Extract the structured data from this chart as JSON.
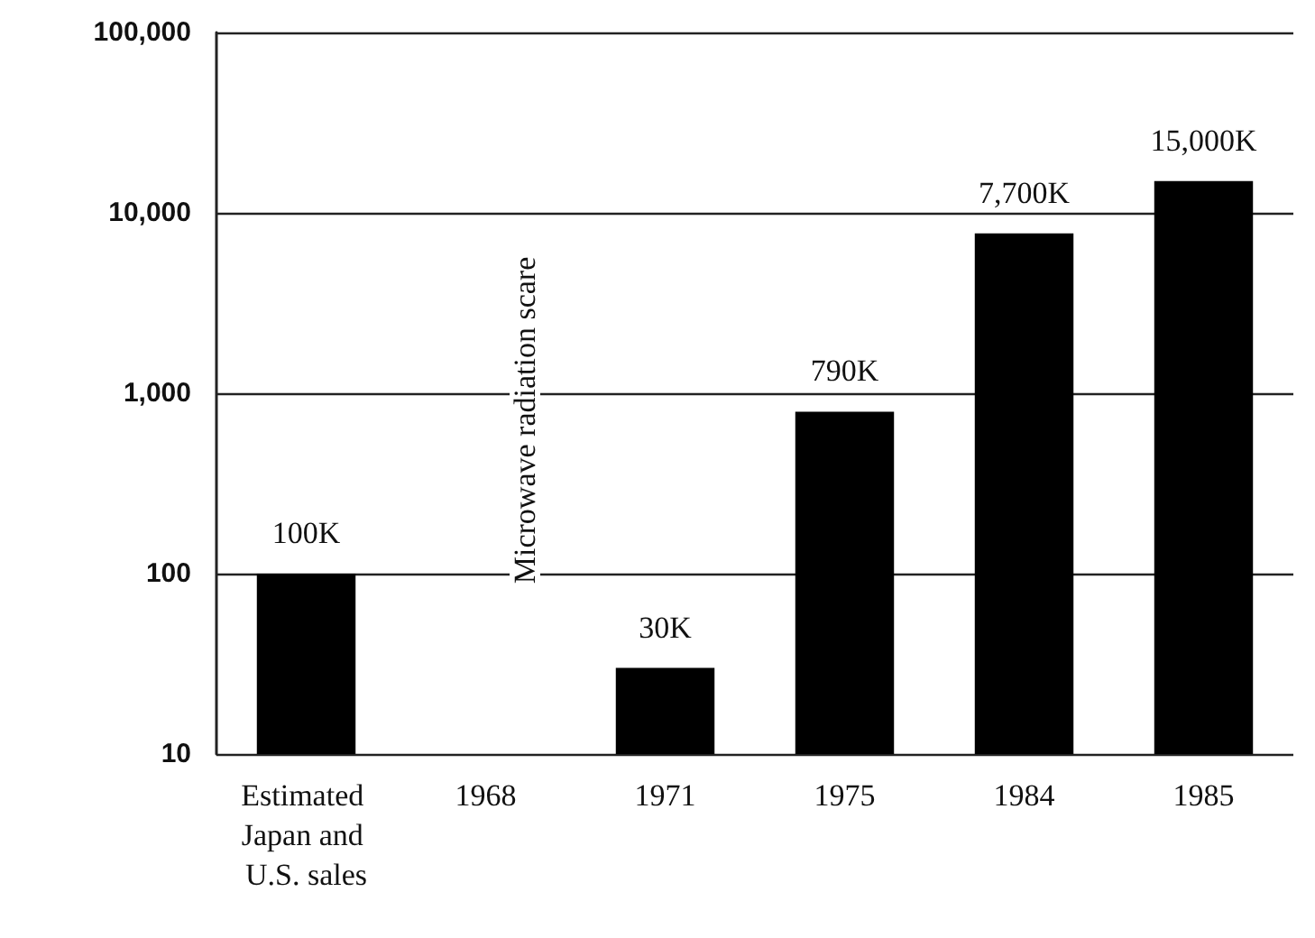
{
  "chart_data": {
    "type": "bar",
    "categories": [
      "Estimated Japan and U.S. sales",
      "1968",
      "1971",
      "1975",
      "1984",
      "1985"
    ],
    "values": [
      100,
      null,
      30,
      790,
      7700,
      15000
    ],
    "value_labels": [
      "100K",
      null,
      "30K",
      "790K",
      "7,700K",
      "15,000K"
    ],
    "color": "#000000",
    "log": "y",
    "ylim": [
      10,
      100000
    ],
    "yticks": [
      10,
      100,
      {
        "value": 1000,
        "label": "1,000"
      },
      {
        "value": 10000,
        "label": "10,000"
      },
      {
        "value": 100000,
        "label": "100,000"
      }
    ],
    "grid": "y",
    "annotations": [
      "Microwave radiation scare"
    ]
  }
}
